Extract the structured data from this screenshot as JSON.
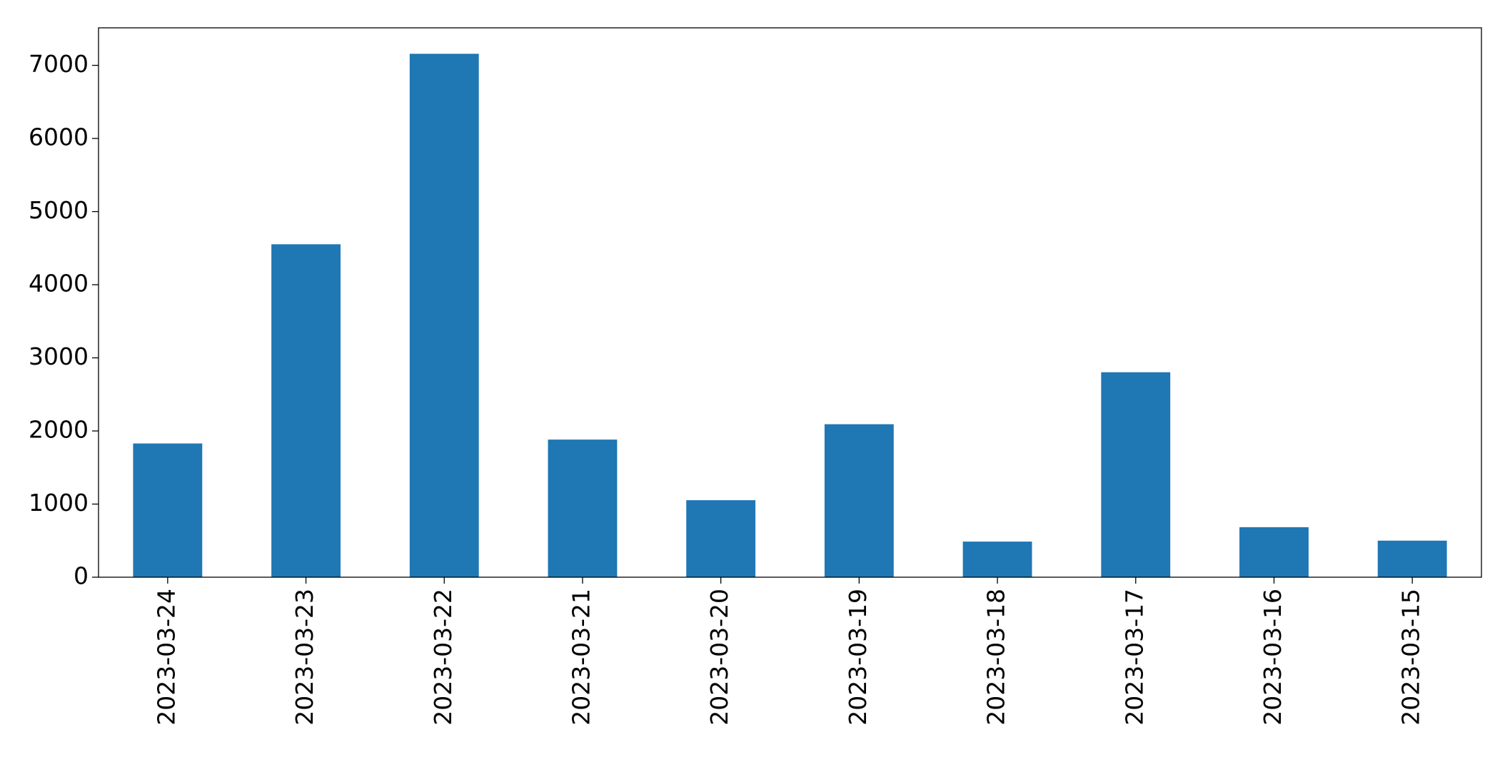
{
  "chart_data": {
    "type": "bar",
    "categories": [
      "2023-03-24",
      "2023-03-23",
      "2023-03-22",
      "2023-03-21",
      "2023-03-20",
      "2023-03-19",
      "2023-03-18",
      "2023-03-17",
      "2023-03-16",
      "2023-03-15"
    ],
    "values": [
      1829,
      4553,
      7158,
      1882,
      1053,
      2092,
      487,
      2803,
      684,
      500
    ],
    "color": "#1f77b4",
    "ylim": [
      0,
      7513
    ],
    "yticks": [
      0,
      1000,
      2000,
      3000,
      4000,
      5000,
      6000,
      7000
    ],
    "grid": false
  }
}
